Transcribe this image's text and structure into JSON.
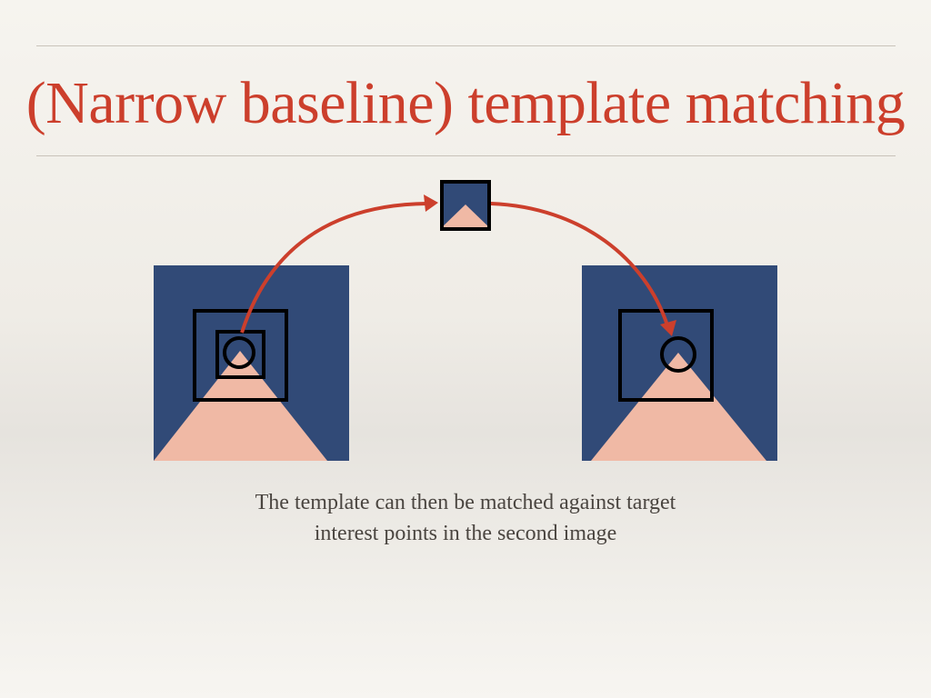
{
  "slide": {
    "title": "(Narrow baseline) template matching",
    "caption_line1": "The template can then be matched against target",
    "caption_line2": "interest points in the second image"
  },
  "colors": {
    "title": "#cc3f2c",
    "image_bg": "#314a77",
    "shape": "#f0b9a5",
    "arrow": "#cc3f2c",
    "outline": "#000000",
    "caption": "#4a4540"
  }
}
